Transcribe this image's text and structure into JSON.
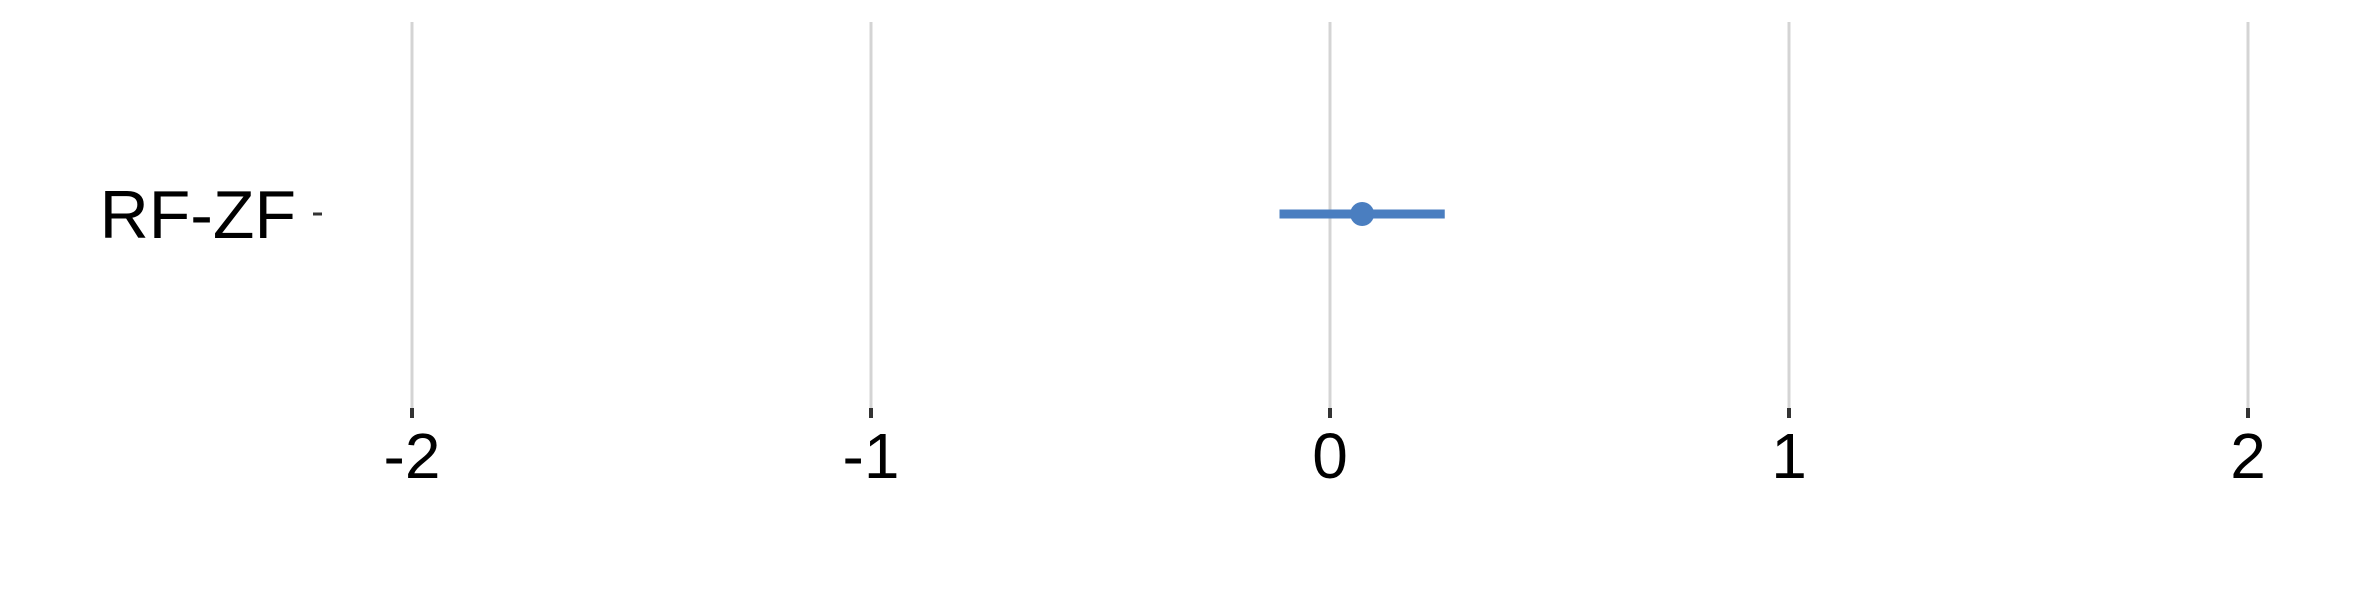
{
  "chart_data": {
    "type": "scatter",
    "subtype": "forest-plot",
    "title": "",
    "xlabel": "",
    "ylabel": "",
    "xlim": [
      -2.0,
      2.0
    ],
    "x_ticks": [
      -2,
      -1,
      0,
      1,
      2
    ],
    "x_tick_labels": [
      "-2",
      "-1",
      "0",
      "1",
      "2"
    ],
    "categories": [
      "RF-ZF"
    ],
    "points": [
      {
        "category": "RF-ZF",
        "estimate": 0.07,
        "lower": -0.11,
        "upper": 0.25
      }
    ],
    "grid": "vertical",
    "legend": "none",
    "colors": {
      "point": "#4a7ec0",
      "grid": "#d4d4d4",
      "tick": "#333333"
    }
  }
}
